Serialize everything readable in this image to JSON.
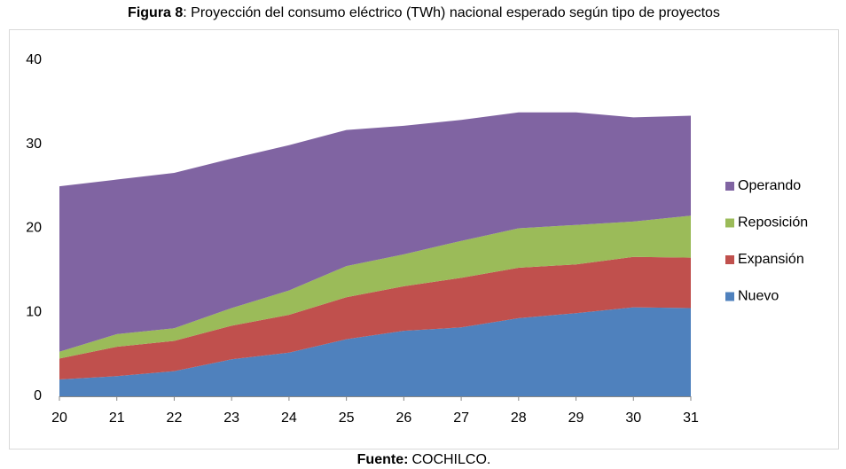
{
  "chart_data": {
    "type": "stacked_area",
    "title_label": "Figura 8",
    "title": ": Proyección del consumo eléctrico (TWh) nacional esperado según tipo de proyectos",
    "source_label": "Fuente:",
    "source": "COCHILCO.",
    "categories": [
      "20",
      "21",
      "22",
      "23",
      "24",
      "25",
      "26",
      "27",
      "28",
      "29",
      "30",
      "31"
    ],
    "series": [
      {
        "name": "Nuevo",
        "color": "#4f81bd",
        "values": [
          2.0,
          2.4,
          3.0,
          4.4,
          5.2,
          6.8,
          7.8,
          8.2,
          9.3,
          9.9,
          10.6,
          10.5
        ]
      },
      {
        "name": "Expansión",
        "color": "#c0504d",
        "values": [
          2.5,
          3.5,
          3.6,
          4.0,
          4.5,
          5.0,
          5.3,
          5.9,
          6.0,
          5.8,
          6.0,
          6.0
        ]
      },
      {
        "name": "Reposición",
        "color": "#9bbb59",
        "values": [
          0.8,
          1.5,
          1.5,
          2.1,
          2.9,
          3.7,
          3.8,
          4.4,
          4.7,
          4.7,
          4.2,
          5.0
        ]
      },
      {
        "name": "Operando",
        "color": "#8064a2",
        "values": [
          19.7,
          18.4,
          18.5,
          17.8,
          17.3,
          16.2,
          15.3,
          14.4,
          13.8,
          13.4,
          12.4,
          11.9
        ]
      }
    ],
    "ylim": [
      0,
      40
    ],
    "yticks": [
      0,
      10,
      20,
      30,
      40
    ],
    "grid": false,
    "legend": "right"
  }
}
